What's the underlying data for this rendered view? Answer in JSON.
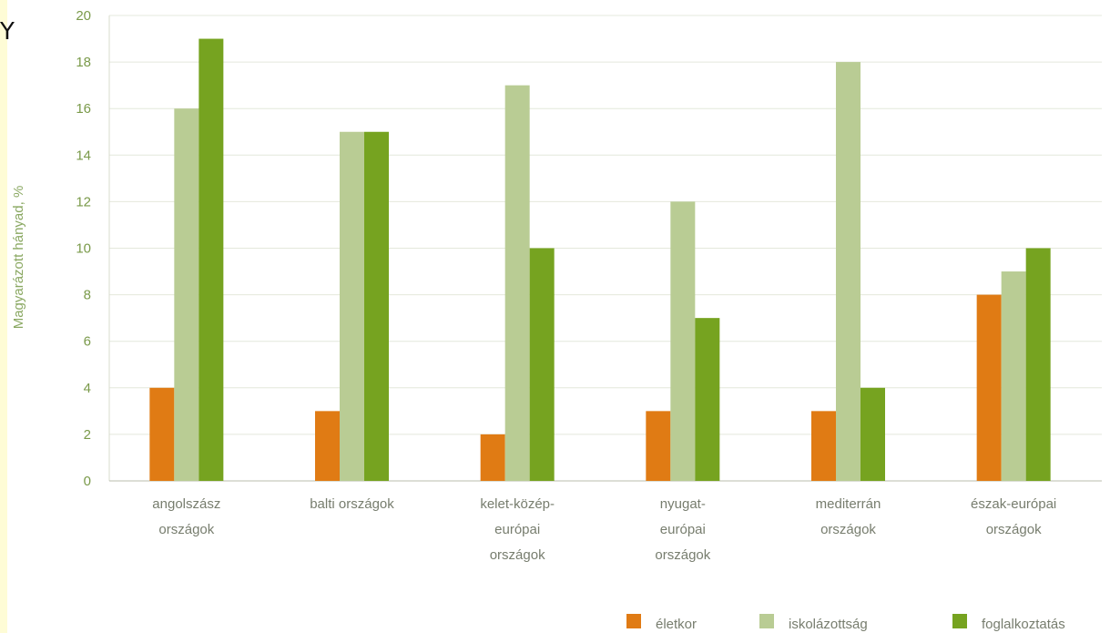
{
  "chart_data": {
    "type": "bar",
    "ylabel": "Magyarázott hányad, %",
    "ylim": [
      0,
      20
    ],
    "yticks": [
      "0",
      "2",
      "4",
      "6",
      "8",
      "10",
      "12",
      "14",
      "16",
      "18",
      "20"
    ],
    "grid": true,
    "legend_position": "bottom-right",
    "categories": [
      [
        "angolszász",
        "országok"
      ],
      [
        "balti országok"
      ],
      [
        "kelet-közép-",
        "európai",
        "országok"
      ],
      [
        "nyugat-",
        "európai",
        "országok"
      ],
      [
        "mediterrán",
        "országok"
      ],
      [
        "észak-európai",
        "országok"
      ]
    ],
    "series": [
      {
        "name": "életkor",
        "color": "#e07b14",
        "values": [
          4,
          3,
          2,
          3,
          3,
          8
        ]
      },
      {
        "name": "iskolázottság",
        "color": "#b9cc94",
        "values": [
          16,
          15,
          17,
          12,
          18,
          9
        ]
      },
      {
        "name": "foglalkoztatás",
        "color": "#76a320",
        "values": [
          19,
          15,
          10,
          7,
          4,
          10
        ]
      }
    ]
  },
  "corner_mark": "Y"
}
